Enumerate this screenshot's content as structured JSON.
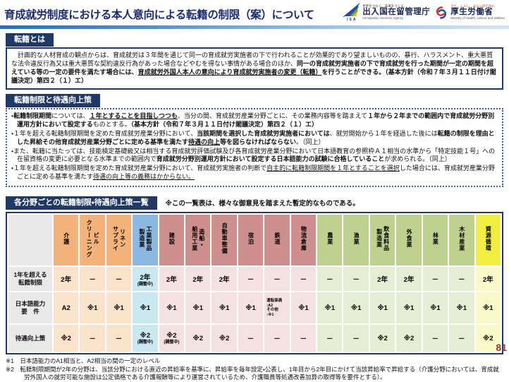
{
  "header": {
    "title": "育成就労制度における本人意向による転籍の制限（案）について",
    "isa_logo": {
      "abbr": "ISA",
      "tagline": "世界をつなぐ。未来をつくる。",
      "name": "出入国在留管理庁",
      "name_en": "Immigration Services Agency"
    },
    "mhlw_logo": {
      "tagline": "ひと、くらし、みらいのために",
      "name": "厚生労働省",
      "name_en": "Ministry of Health, Labour and Welfare"
    }
  },
  "section1": {
    "heading": "転籍とは",
    "paragraph": [
      {
        "t": "　計画的な人材育成の観点からは、育成就労は３年間を通じて同一の育成就労実施者の下で行われることが効果的であり望ましいものの、暴行、ハラスメント、重大悪質な法令違反行為又は重大悪質な契約違反行為があった場合などやむを得ない事情がある場合のほか、",
        "s": ""
      },
      {
        "t": "同一の育成就労実施者の下で育成就労を行った期間が一定の期間を超えている等の一定の要件を満たす場合には、",
        "s": "b"
      },
      {
        "t": "育成就労外国人本人の意向により育成就労実施者の変更（転籍）",
        "s": "bu"
      },
      {
        "t": "を行うことができる。（基本方針（令和７年３月１１日付け閣議決定）第四２（１）エ）",
        "s": "b"
      }
    ]
  },
  "section2": {
    "heading": "転籍制限と待遇向上策",
    "bullets": [
      [
        {
          "t": "・",
          "s": ""
        },
        {
          "t": "転籍制限期間",
          "s": "b"
        },
        {
          "t": "については、",
          "s": ""
        },
        {
          "t": "１年とすることを目指しつつも",
          "s": "bu"
        },
        {
          "t": "、当分の間、育成就労産業分野ごとに、その業務内容等を踏まえて",
          "s": ""
        },
        {
          "t": "１年から２年までの範囲内で育成就労分野別運用方針において設定する",
          "s": "b"
        },
        {
          "t": "ものとする。",
          "s": ""
        },
        {
          "t": "（基本方針（令和７年３月１１日付け閣議決定）第四２（１）エ）",
          "s": "b"
        }
      ],
      [
        {
          "t": "・１年を超える転籍制限期間を定めた育成就労産業分野において、",
          "s": ""
        },
        {
          "t": "当該期間を選択した育成就労実施者においては",
          "s": "b"
        },
        {
          "t": "、就労開始から１年を経過した後には",
          "s": ""
        },
        {
          "t": "転籍の制限を理由とした昇給その他育成就労産業分野ごとに定める基準を満たす",
          "s": "b"
        },
        {
          "t": "待遇の向上",
          "s": "bu"
        },
        {
          "t": "等を図らなければならない",
          "s": "b"
        },
        {
          "t": "。（同上）",
          "s": ""
        }
      ],
      [
        {
          "t": "・また、転籍に当たっては、技能検定基礎級又は相当する育成就労評価試験及び各育成就労産業分野において日本語教育の参照枠Ａ１相当の水準から「特定技能１号」への在留資格の変更に必要となる水準までの範囲内で",
          "s": ""
        },
        {
          "t": "育成就労分野別運用方針において設定する日本語能力の試験に合格していること",
          "s": "b"
        },
        {
          "t": "が求められる。（同上）",
          "s": ""
        }
      ],
      [
        {
          "t": "・１年を超える転籍制限期間を定めた育成就労産業分野において、育成就労実施者の判断で",
          "s": ""
        },
        {
          "t": "自主的に転籍制限期間を１年とすることを選択",
          "s": "u"
        },
        {
          "t": "した場合には、育成就労産業分野ごとに定める基準を満たす",
          "s": ""
        },
        {
          "t": "待遇の向上等の義務はかからない。",
          "s": "u"
        }
      ]
    ]
  },
  "section3": {
    "heading": "各分野ごとの転籍制限・待遇向上策一覧",
    "note": "※この一覧表は、様々な御意見を踏まえた暫定的なものである。"
  },
  "table": {
    "row_labels": [
      [
        "1年を超える",
        "転籍制限"
      ],
      [
        "日本語能力",
        "要　件"
      ],
      [
        "待遇向上策"
      ]
    ],
    "columns": [
      {
        "label": [
          "介護"
        ],
        "group": "orange",
        "cells": [
          {
            "v": "2年"
          },
          {
            "v": "A2"
          },
          {
            "v": "※2"
          }
        ]
      },
      {
        "label": [
          "ビル",
          "クリーニング"
        ],
        "group": "orange",
        "cells": [
          {
            "v": "－"
          },
          {
            "v": "※1"
          },
          {
            "v": "－"
          }
        ]
      },
      {
        "label": [
          "リネン",
          "サプライ"
        ],
        "group": "orange",
        "cells": [
          {
            "v": "－"
          },
          {
            "v": "※1"
          },
          {
            "v": "－"
          }
        ]
      },
      {
        "label": [
          "工業製品",
          "製造業"
        ],
        "group": "blue",
        "cells": [
          {
            "v": "2年",
            "note": "(調整中)"
          },
          {
            "v": "※1"
          },
          {
            "v": "※2",
            "note": "(調整中)"
          }
        ]
      },
      {
        "label": [
          "建設"
        ],
        "group": "red",
        "cells": [
          {
            "v": "2年"
          },
          {
            "v": "※1"
          },
          {
            "v": "※2",
            "note": "(調整中)"
          }
        ]
      },
      {
        "label": [
          "造船・",
          "舶用工業"
        ],
        "group": "red",
        "cells": [
          {
            "v": "2年"
          },
          {
            "v": "※1"
          },
          {
            "v": "※2"
          }
        ]
      },
      {
        "label": [
          "自動車整備"
        ],
        "group": "red",
        "cells": [
          {
            "v": "2年"
          },
          {
            "v": "※1"
          },
          {
            "v": "※2"
          }
        ]
      },
      {
        "label": [
          "宿泊"
        ],
        "group": "red",
        "cells": [
          {
            "v": "－"
          },
          {
            "v": "※1"
          },
          {
            "v": "－"
          }
        ]
      },
      {
        "label": [
          "鉄道"
        ],
        "group": "red",
        "cells": [
          {
            "v": "－"
          },
          {
            "small": [
              "運転係員",
              ":A2",
              "その他",
              ":※1"
            ]
          },
          {
            "v": "－"
          }
        ]
      },
      {
        "label": [
          "物流倉庫"
        ],
        "group": "red",
        "cells": [
          {
            "v": "－"
          },
          {
            "v": "※1"
          },
          {
            "v": "－"
          }
        ]
      },
      {
        "label": [
          "農業"
        ],
        "group": "green",
        "cells": [
          {
            "v": "－"
          },
          {
            "v": "※1"
          },
          {
            "v": "－"
          }
        ]
      },
      {
        "label": [
          "漁業"
        ],
        "group": "green",
        "cells": [
          {
            "v": "－"
          },
          {
            "v": "※1"
          },
          {
            "v": "－"
          }
        ]
      },
      {
        "label": [
          "飲食料品",
          "製造業"
        ],
        "group": "green",
        "cells": [
          {
            "v": "2年"
          },
          {
            "v": "※1"
          },
          {
            "v": "※2"
          }
        ]
      },
      {
        "label": [
          "外食業"
        ],
        "group": "green",
        "cells": [
          {
            "v": "2年"
          },
          {
            "v": "※1"
          },
          {
            "v": "※2"
          }
        ]
      },
      {
        "label": [
          "林業"
        ],
        "group": "green",
        "cells": [
          {
            "v": "－"
          },
          {
            "v": "※1"
          },
          {
            "v": "－"
          }
        ]
      },
      {
        "label": [
          "木材産業"
        ],
        "group": "green",
        "cells": [
          {
            "v": "－"
          },
          {
            "v": "※1"
          },
          {
            "v": "－"
          }
        ]
      },
      {
        "label": [
          "資源循環"
        ],
        "group": "yellow",
        "cells": [
          {
            "v": "2年"
          },
          {
            "v": "※1"
          },
          {
            "v": "※2"
          }
        ]
      }
    ]
  },
  "footnotes": [
    "※1　日本語能力のA1相当と、A2相当の間の一定のレベル",
    "※2　転籍制限期間が2年の分野は、当該分野における直近の昇給率を基準に、昇給率を毎年設定・公表し、1年目から2年目にかけて当該昇給率で昇給する（介護分野においては、育成就労外国人の就労可能な施設は公定価格である介護報酬等により運営されているため、介護職員等処遇改善加算の取得等を要件とする）。"
  ],
  "page_number": "81",
  "colors": {
    "navy": "#1f3864",
    "orange": {
      "head": "#f2b279",
      "cell": "#fbe3cb"
    },
    "blue": {
      "head": "#8bb9e3",
      "cell": "#c9e8f1"
    },
    "red": {
      "head": "#cf8f8d",
      "cell": "#f5e1e0"
    },
    "green": {
      "head": "#bfd08f",
      "cell": "#e5edd2"
    },
    "yellow": {
      "head": "#f0ef3e",
      "cell": "#faf9c8"
    },
    "label_bg": "#e9e9e9"
  }
}
